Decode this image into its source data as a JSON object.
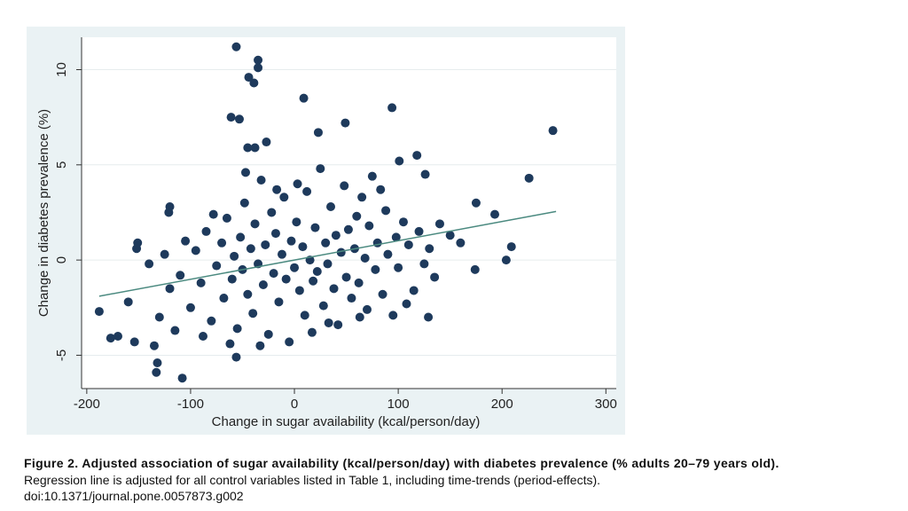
{
  "chart_data": {
    "type": "scatter",
    "x_label": "Change in sugar availability (kcal/person/day)",
    "y_label": "Change in diabetes prevalence (%)",
    "color": "#1e3a5c",
    "x": [
      -56,
      -35,
      -35,
      -44,
      -39,
      9,
      94,
      -61,
      -53,
      49,
      23,
      249,
      -27,
      -45,
      -38,
      118,
      101,
      226,
      -188,
      -177,
      -170,
      -154,
      -108,
      -133,
      -132,
      -56,
      -151,
      -152,
      204,
      209,
      174,
      129,
      -160,
      -120,
      -121,
      193,
      175,
      126,
      -120,
      -110,
      -100,
      -95,
      -90,
      -85,
      -80,
      -75,
      -70,
      -68,
      -65,
      -60,
      -58,
      -55,
      -52,
      -50,
      -48,
      -45,
      -42,
      -40,
      -38,
      -35,
      -32,
      -30,
      -28,
      -25,
      -22,
      -20,
      -18,
      -15,
      -12,
      -10,
      -8,
      -5,
      -3,
      0,
      2,
      5,
      8,
      10,
      12,
      15,
      18,
      20,
      22,
      25,
      28,
      30,
      32,
      35,
      38,
      40,
      42,
      45,
      48,
      50,
      52,
      55,
      58,
      60,
      62,
      65,
      68,
      70,
      72,
      75,
      78,
      80,
      85,
      88,
      90,
      95,
      98,
      100,
      105,
      110,
      115,
      120,
      125,
      130,
      140,
      150,
      160,
      -130,
      -140,
      -135,
      -125,
      -115,
      -105,
      -88,
      -78,
      -62,
      -47,
      -33,
      -17,
      3,
      17,
      33,
      63,
      83,
      108,
      135
    ],
    "y": [
      11.2,
      10.5,
      10.1,
      9.6,
      9.3,
      8.5,
      8.0,
      7.5,
      7.4,
      7.2,
      6.7,
      6.8,
      6.2,
      5.9,
      5.9,
      5.5,
      5.2,
      4.3,
      -2.7,
      -4.1,
      -4.0,
      -4.3,
      -6.2,
      -5.9,
      -5.4,
      -5.1,
      0.9,
      0.6,
      0.0,
      0.7,
      -0.5,
      -3.0,
      -2.2,
      2.8,
      2.5,
      2.4,
      3.0,
      4.5,
      -1.5,
      -0.8,
      -2.5,
      0.5,
      -1.2,
      1.5,
      -3.2,
      -0.3,
      0.9,
      -2.0,
      2.2,
      -1.0,
      0.2,
      -3.6,
      1.2,
      -0.5,
      3.0,
      -1.8,
      0.6,
      -2.8,
      1.9,
      -0.2,
      4.2,
      -1.3,
      0.8,
      -3.9,
      2.5,
      -0.7,
      1.4,
      -2.2,
      0.3,
      3.3,
      -1.0,
      -4.3,
      1.0,
      -0.4,
      2.0,
      -1.6,
      0.7,
      -2.9,
      3.6,
      0.0,
      -1.1,
      1.7,
      -0.6,
      4.8,
      -2.4,
      0.9,
      -0.2,
      2.8,
      -1.5,
      1.3,
      -3.4,
      0.4,
      3.9,
      -0.9,
      1.6,
      -2.0,
      0.6,
      2.3,
      -1.2,
      3.3,
      0.1,
      -2.6,
      1.8,
      4.4,
      -0.5,
      0.9,
      -1.8,
      2.6,
      0.3,
      -2.9,
      1.2,
      -0.4,
      2.0,
      0.8,
      -1.6,
      1.5,
      -0.2,
      0.6,
      1.9,
      1.3,
      0.9,
      -3.0,
      -0.2,
      -4.5,
      0.3,
      -3.7,
      1.0,
      -4.0,
      2.4,
      -4.4,
      4.6,
      -4.5,
      3.7,
      4.0,
      -3.8,
      -3.3,
      -3.0,
      3.7,
      -2.3,
      -0.9
    ],
    "regression_line": {
      "color": "#4b8a80",
      "x": [
        -188,
        252
      ],
      "y": [
        -1.9,
        2.55
      ]
    },
    "xlim": [
      -205,
      310
    ],
    "ylim": [
      -6.75,
      11.7
    ],
    "xticks": [
      -200,
      -100,
      0,
      100,
      200,
      300
    ],
    "yticks": [
      -5,
      0,
      5,
      10
    ],
    "grid": true
  },
  "caption": {
    "title": "Figure 2. Adjusted association of sugar availability (kcal/person/day) with diabetes prevalence (% adults 20–79 years old).",
    "text": "Regression line is adjusted for all control variables listed in Table 1, including time-trends (period-effects).",
    "doi": "doi:10.1371/journal.pone.0057873.g002"
  }
}
